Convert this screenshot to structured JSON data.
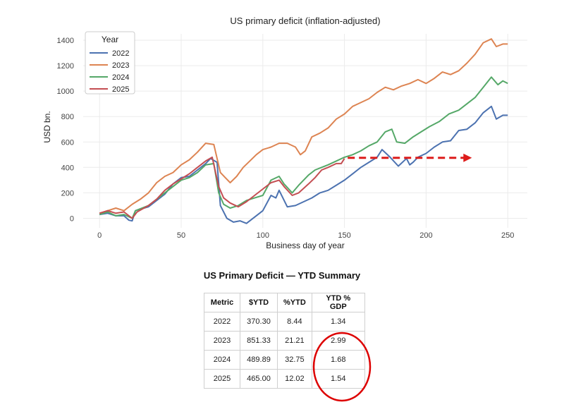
{
  "chart_data": {
    "type": "line",
    "title": "US primary deficit (inflation-adjusted)",
    "xlabel": "Business day of year",
    "ylabel": "USD bn.",
    "xlim": [
      -10,
      262
    ],
    "ylim": [
      -75,
      1450
    ],
    "xticks": [
      0,
      50,
      100,
      150,
      200,
      250
    ],
    "yticks": [
      0,
      200,
      400,
      600,
      800,
      1000,
      1200,
      1400
    ],
    "grid": true,
    "legend": {
      "title": "Year",
      "placement": "top-left"
    },
    "series": [
      {
        "name": "2022",
        "color": "#4c72b0",
        "points": [
          [
            0,
            30
          ],
          [
            5,
            40
          ],
          [
            10,
            20
          ],
          [
            15,
            20
          ],
          [
            18,
            -15
          ],
          [
            20,
            -20
          ],
          [
            22,
            60
          ],
          [
            30,
            90
          ],
          [
            40,
            190
          ],
          [
            45,
            270
          ],
          [
            50,
            320
          ],
          [
            55,
            330
          ],
          [
            60,
            380
          ],
          [
            65,
            430
          ],
          [
            68,
            470
          ],
          [
            72,
            440
          ],
          [
            74,
            100
          ],
          [
            78,
            0
          ],
          [
            82,
            -30
          ],
          [
            86,
            -20
          ],
          [
            90,
            -40
          ],
          [
            96,
            20
          ],
          [
            100,
            60
          ],
          [
            105,
            180
          ],
          [
            108,
            160
          ],
          [
            110,
            220
          ],
          [
            115,
            90
          ],
          [
            120,
            100
          ],
          [
            125,
            130
          ],
          [
            130,
            160
          ],
          [
            135,
            200
          ],
          [
            140,
            220
          ],
          [
            145,
            260
          ],
          [
            150,
            300
          ],
          [
            155,
            350
          ],
          [
            160,
            400
          ],
          [
            165,
            440
          ],
          [
            170,
            480
          ],
          [
            173,
            540
          ],
          [
            178,
            480
          ],
          [
            183,
            410
          ],
          [
            188,
            470
          ],
          [
            190,
            420
          ],
          [
            192,
            440
          ],
          [
            195,
            480
          ],
          [
            200,
            510
          ],
          [
            205,
            560
          ],
          [
            210,
            600
          ],
          [
            215,
            610
          ],
          [
            220,
            690
          ],
          [
            225,
            700
          ],
          [
            230,
            750
          ],
          [
            235,
            830
          ],
          [
            240,
            880
          ],
          [
            243,
            780
          ],
          [
            247,
            810
          ],
          [
            250,
            810
          ]
        ]
      },
      {
        "name": "2023",
        "color": "#dd8452",
        "points": [
          [
            0,
            40
          ],
          [
            5,
            60
          ],
          [
            10,
            80
          ],
          [
            15,
            60
          ],
          [
            20,
            110
          ],
          [
            25,
            150
          ],
          [
            30,
            200
          ],
          [
            35,
            280
          ],
          [
            40,
            330
          ],
          [
            45,
            360
          ],
          [
            50,
            420
          ],
          [
            55,
            460
          ],
          [
            60,
            520
          ],
          [
            65,
            590
          ],
          [
            70,
            580
          ],
          [
            74,
            360
          ],
          [
            77,
            320
          ],
          [
            80,
            280
          ],
          [
            84,
            330
          ],
          [
            88,
            400
          ],
          [
            92,
            450
          ],
          [
            96,
            500
          ],
          [
            100,
            540
          ],
          [
            105,
            560
          ],
          [
            110,
            590
          ],
          [
            115,
            590
          ],
          [
            120,
            560
          ],
          [
            123,
            500
          ],
          [
            126,
            530
          ],
          [
            130,
            640
          ],
          [
            135,
            670
          ],
          [
            140,
            710
          ],
          [
            145,
            780
          ],
          [
            150,
            820
          ],
          [
            155,
            880
          ],
          [
            160,
            910
          ],
          [
            165,
            940
          ],
          [
            170,
            990
          ],
          [
            175,
            1030
          ],
          [
            180,
            1010
          ],
          [
            185,
            1040
          ],
          [
            190,
            1060
          ],
          [
            195,
            1090
          ],
          [
            200,
            1060
          ],
          [
            205,
            1100
          ],
          [
            210,
            1150
          ],
          [
            215,
            1130
          ],
          [
            220,
            1160
          ],
          [
            225,
            1220
          ],
          [
            230,
            1290
          ],
          [
            235,
            1380
          ],
          [
            240,
            1410
          ],
          [
            243,
            1350
          ],
          [
            247,
            1370
          ],
          [
            250,
            1370
          ]
        ]
      },
      {
        "name": "2024",
        "color": "#55a868",
        "points": [
          [
            0,
            30
          ],
          [
            5,
            50
          ],
          [
            10,
            20
          ],
          [
            15,
            30
          ],
          [
            20,
            0
          ],
          [
            22,
            60
          ],
          [
            30,
            100
          ],
          [
            35,
            150
          ],
          [
            40,
            200
          ],
          [
            45,
            250
          ],
          [
            50,
            300
          ],
          [
            55,
            320
          ],
          [
            60,
            360
          ],
          [
            65,
            420
          ],
          [
            70,
            430
          ],
          [
            73,
            200
          ],
          [
            76,
            110
          ],
          [
            80,
            80
          ],
          [
            85,
            100
          ],
          [
            90,
            140
          ],
          [
            95,
            160
          ],
          [
            100,
            180
          ],
          [
            105,
            300
          ],
          [
            110,
            330
          ],
          [
            113,
            270
          ],
          [
            118,
            200
          ],
          [
            122,
            260
          ],
          [
            128,
            340
          ],
          [
            132,
            380
          ],
          [
            136,
            400
          ],
          [
            140,
            420
          ],
          [
            145,
            450
          ],
          [
            150,
            480
          ],
          [
            155,
            500
          ],
          [
            160,
            530
          ],
          [
            165,
            570
          ],
          [
            170,
            600
          ],
          [
            175,
            680
          ],
          [
            179,
            700
          ],
          [
            182,
            600
          ],
          [
            187,
            590
          ],
          [
            192,
            640
          ],
          [
            197,
            680
          ],
          [
            202,
            720
          ],
          [
            208,
            760
          ],
          [
            214,
            820
          ],
          [
            220,
            850
          ],
          [
            225,
            900
          ],
          [
            230,
            950
          ],
          [
            235,
            1030
          ],
          [
            240,
            1110
          ],
          [
            244,
            1050
          ],
          [
            247,
            1080
          ],
          [
            250,
            1060
          ]
        ]
      },
      {
        "name": "2025",
        "color": "#c44e52",
        "points": [
          [
            0,
            40
          ],
          [
            5,
            60
          ],
          [
            10,
            40
          ],
          [
            15,
            50
          ],
          [
            20,
            0
          ],
          [
            23,
            50
          ],
          [
            30,
            100
          ],
          [
            35,
            150
          ],
          [
            40,
            220
          ],
          [
            45,
            270
          ],
          [
            50,
            310
          ],
          [
            55,
            350
          ],
          [
            60,
            400
          ],
          [
            65,
            450
          ],
          [
            69,
            480
          ],
          [
            73,
            250
          ],
          [
            76,
            160
          ],
          [
            80,
            120
          ],
          [
            85,
            90
          ],
          [
            90,
            130
          ],
          [
            95,
            180
          ],
          [
            100,
            230
          ],
          [
            105,
            280
          ],
          [
            110,
            300
          ],
          [
            113,
            250
          ],
          [
            118,
            180
          ],
          [
            122,
            200
          ],
          [
            128,
            270
          ],
          [
            132,
            320
          ],
          [
            136,
            380
          ],
          [
            140,
            400
          ],
          [
            145,
            430
          ],
          [
            148,
            430
          ],
          [
            150,
            470
          ]
        ]
      }
    ],
    "annotation": {
      "type": "dashed-arrow",
      "color": "#dd1c1a",
      "from": [
        152,
        475
      ],
      "to": [
        228,
        475
      ]
    }
  },
  "table": {
    "title": "US Primary Deficit — YTD Summary",
    "headers": [
      "Metric",
      "$YTD",
      "%YTD",
      "YTD % GDP"
    ],
    "rows": [
      [
        "2022",
        "370.30",
        "8.44",
        "1.34"
      ],
      [
        "2023",
        "851.33",
        "21.21",
        "2.99"
      ],
      [
        "2024",
        "489.89",
        "32.75",
        "1.68"
      ],
      [
        "2025",
        "465.00",
        "12.02",
        "1.54"
      ]
    ],
    "highlight": {
      "shape": "ellipse",
      "color": "#dd0000",
      "column": "YTD % GDP",
      "rows": [
        "2023",
        "2024",
        "2025"
      ]
    }
  }
}
